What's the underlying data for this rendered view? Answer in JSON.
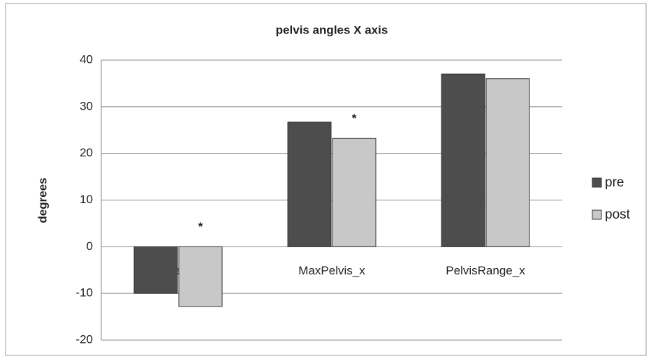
{
  "chart_data": {
    "type": "bar",
    "title": "pelvis angles X axis",
    "y_label": "degrees",
    "categories": [
      "MinPelvis_x",
      "MaxPelvis_x",
      "PelvisRange_x"
    ],
    "series": [
      {
        "name": "pre",
        "color": "#4d4d4d",
        "values": [
          -10,
          26.7,
          37
        ]
      },
      {
        "name": "post",
        "color": "#c8c8c8",
        "values": [
          -12.8,
          23.2,
          36
        ]
      }
    ],
    "ylim": [
      -20,
      40
    ],
    "yticks": [
      -20,
      -10,
      0,
      10,
      20,
      30,
      40
    ],
    "grid": true,
    "legend": "right",
    "annotations": [
      {
        "text": "*",
        "category": 0
      },
      {
        "text": "*",
        "category": 1
      }
    ]
  }
}
